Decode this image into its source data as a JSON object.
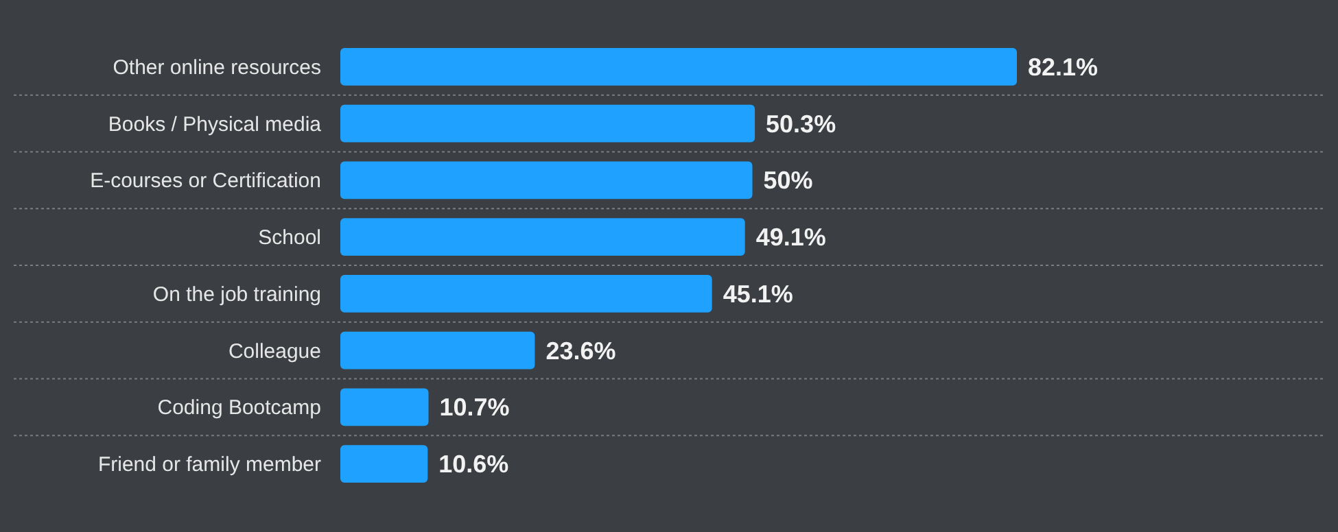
{
  "chart_data": {
    "type": "bar",
    "orientation": "horizontal",
    "categories": [
      "Other online resources",
      "Books / Physical media",
      "E-courses or Certification",
      "School",
      "On the job training",
      "Colleague",
      "Coding Bootcamp",
      "Friend or family member"
    ],
    "values": [
      82.1,
      50.3,
      50,
      49.1,
      45.1,
      23.6,
      10.7,
      10.6
    ],
    "value_labels": [
      "82.1%",
      "50.3%",
      "50%",
      "49.1%",
      "45.1%",
      "23.6%",
      "10.7%",
      "10.6%"
    ],
    "color": "#1fa2ff",
    "grid": true,
    "tick_labels": "y"
  }
}
